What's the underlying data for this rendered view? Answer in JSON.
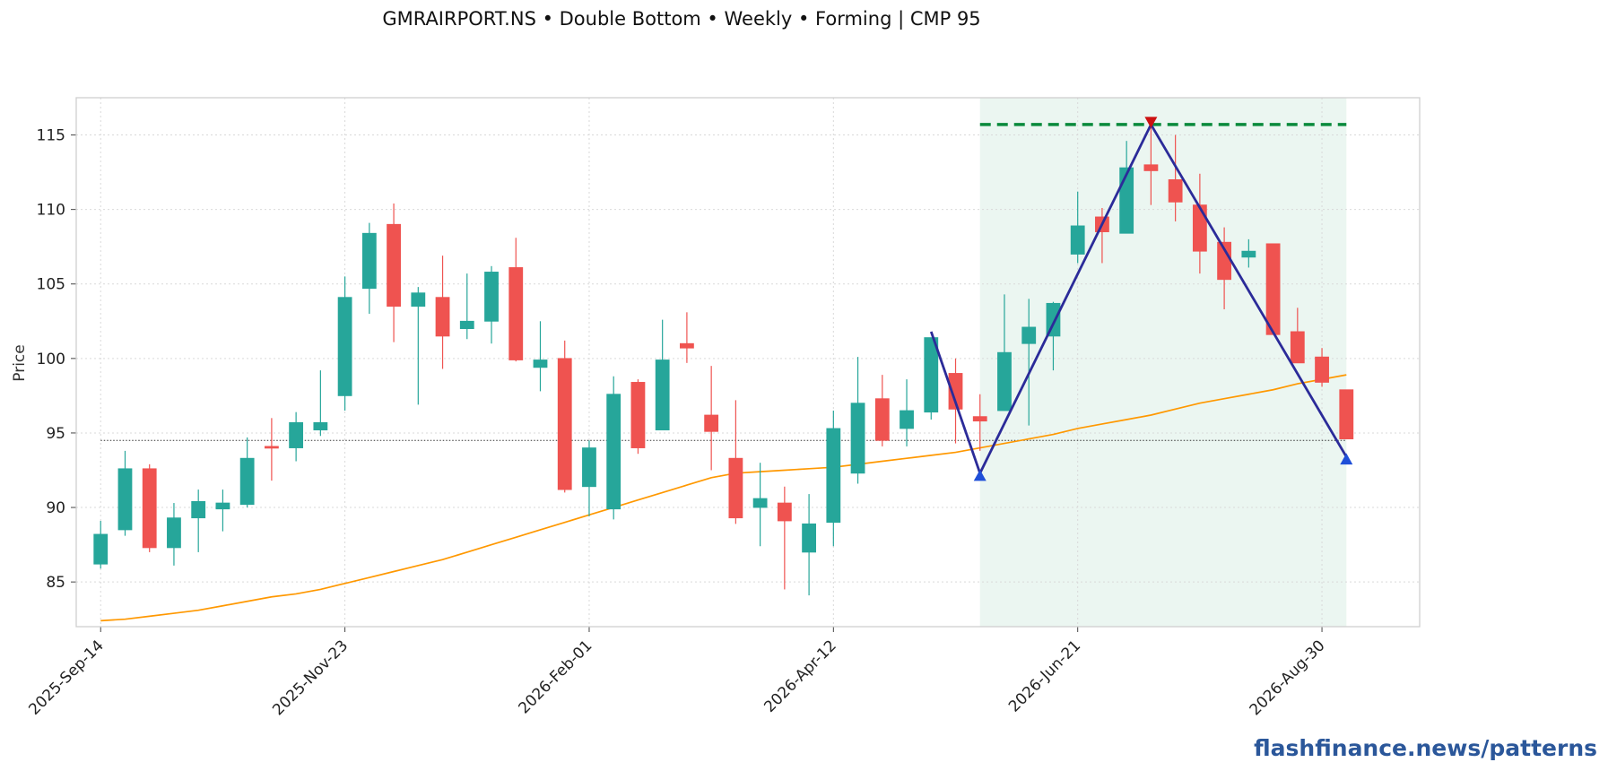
{
  "chart_data": {
    "type": "candlestick",
    "title": "GMRAIRPORT.NS  •  Double Bottom  •  Weekly  •  Forming  |  CMP 95",
    "ylabel": "Price",
    "xlabel": "",
    "ylim": [
      82,
      117.5
    ],
    "yticks": [
      85,
      90,
      95,
      100,
      105,
      110,
      115
    ],
    "xlim": [
      "2025-Sep-07",
      "2026-Sep-27"
    ],
    "xticks": [
      "2025-Sep-14",
      "2025-Nov-23",
      "2026-Feb-01",
      "2026-Apr-12",
      "2026-Jun-21",
      "2026-Aug-30"
    ],
    "grid": true,
    "watermark": "flashfinance.news",
    "footer": "flashfinance.news/patterns",
    "colors": {
      "up": "#26a69a",
      "down": "#ef5350",
      "ma": "#ff9800",
      "pattern": "#2b2b99",
      "resistance": "#0a8a3c",
      "shade": "#e8f5ee"
    },
    "series": [
      {
        "date": "2025-Sep-14",
        "open": 86.2,
        "high": 89.1,
        "low": 85.9,
        "close": 88.2
      },
      {
        "date": "2025-Sep-21",
        "open": 88.5,
        "high": 93.8,
        "low": 88.1,
        "close": 92.6
      },
      {
        "date": "2025-Sep-28",
        "open": 92.6,
        "high": 92.9,
        "low": 87.0,
        "close": 87.3
      },
      {
        "date": "2025-Oct-05",
        "open": 87.3,
        "high": 90.3,
        "low": 86.1,
        "close": 89.3
      },
      {
        "date": "2025-Oct-12",
        "open": 89.3,
        "high": 91.2,
        "low": 87.0,
        "close": 90.4
      },
      {
        "date": "2025-Oct-19",
        "open": 89.9,
        "high": 91.2,
        "low": 88.4,
        "close": 90.3
      },
      {
        "date": "2025-Oct-26",
        "open": 90.2,
        "high": 94.7,
        "low": 90.0,
        "close": 93.3
      },
      {
        "date": "2025-Nov-02",
        "open": 94.1,
        "high": 96.0,
        "low": 91.8,
        "close": 94.0
      },
      {
        "date": "2025-Nov-09",
        "open": 94.0,
        "high": 96.4,
        "low": 93.1,
        "close": 95.7
      },
      {
        "date": "2025-Nov-16",
        "open": 95.2,
        "high": 99.2,
        "low": 94.8,
        "close": 95.7
      },
      {
        "date": "2025-Nov-23",
        "open": 97.5,
        "high": 105.5,
        "low": 96.5,
        "close": 104.1
      },
      {
        "date": "2025-Nov-30",
        "open": 104.7,
        "high": 109.1,
        "low": 103.0,
        "close": 108.4
      },
      {
        "date": "2025-Dec-07",
        "open": 109.0,
        "high": 110.4,
        "low": 101.1,
        "close": 103.5
      },
      {
        "date": "2025-Dec-14",
        "open": 103.5,
        "high": 104.8,
        "low": 96.9,
        "close": 104.4
      },
      {
        "date": "2025-Dec-21",
        "open": 104.1,
        "high": 106.9,
        "low": 99.3,
        "close": 101.5
      },
      {
        "date": "2025-Dec-28",
        "open": 102.0,
        "high": 105.7,
        "low": 101.3,
        "close": 102.5
      },
      {
        "date": "2026-Jan-04",
        "open": 102.5,
        "high": 106.2,
        "low": 101.0,
        "close": 105.8
      },
      {
        "date": "2026-Jan-11",
        "open": 106.1,
        "high": 108.1,
        "low": 99.8,
        "close": 99.9
      },
      {
        "date": "2026-Jan-18",
        "open": 99.4,
        "high": 102.5,
        "low": 97.8,
        "close": 99.9
      },
      {
        "date": "2026-Jan-25",
        "open": 100.0,
        "high": 101.2,
        "low": 91.0,
        "close": 91.2
      },
      {
        "date": "2026-Feb-01",
        "open": 91.4,
        "high": 94.5,
        "low": 89.4,
        "close": 94.0
      },
      {
        "date": "2026-Feb-08",
        "open": 89.9,
        "high": 98.8,
        "low": 89.2,
        "close": 97.6
      },
      {
        "date": "2026-Feb-15",
        "open": 98.4,
        "high": 98.6,
        "low": 93.6,
        "close": 94.0
      },
      {
        "date": "2026-Feb-22",
        "open": 95.2,
        "high": 102.6,
        "low": 95.2,
        "close": 99.9
      },
      {
        "date": "2026-Mar-01",
        "open": 101.0,
        "high": 103.1,
        "low": 99.7,
        "close": 100.7
      },
      {
        "date": "2026-Mar-08",
        "open": 96.2,
        "high": 99.5,
        "low": 92.5,
        "close": 95.1
      },
      {
        "date": "2026-Mar-15",
        "open": 93.3,
        "high": 97.2,
        "low": 88.9,
        "close": 89.3
      },
      {
        "date": "2026-Mar-22",
        "open": 90.0,
        "high": 93.0,
        "low": 87.4,
        "close": 90.6
      },
      {
        "date": "2026-Mar-29",
        "open": 90.3,
        "high": 91.4,
        "low": 84.5,
        "close": 89.1
      },
      {
        "date": "2026-Apr-05",
        "open": 87.0,
        "high": 90.9,
        "low": 84.1,
        "close": 88.9
      },
      {
        "date": "2026-Apr-12",
        "open": 89.0,
        "high": 96.5,
        "low": 87.4,
        "close": 95.3
      },
      {
        "date": "2026-Apr-19",
        "open": 92.3,
        "high": 100.1,
        "low": 91.6,
        "close": 97.0
      },
      {
        "date": "2026-Apr-26",
        "open": 97.3,
        "high": 98.9,
        "low": 94.1,
        "close": 94.5
      },
      {
        "date": "2026-May-03",
        "open": 95.3,
        "high": 98.6,
        "low": 94.1,
        "close": 96.5
      },
      {
        "date": "2026-May-10",
        "open": 96.4,
        "high": 101.4,
        "low": 95.9,
        "close": 101.4
      },
      {
        "date": "2026-May-17",
        "open": 99.0,
        "high": 100.0,
        "low": 94.3,
        "close": 96.6
      },
      {
        "date": "2026-May-24",
        "open": 96.1,
        "high": 97.6,
        "low": 93.8,
        "close": 95.8
      },
      {
        "date": "2026-May-31",
        "open": 96.5,
        "high": 104.3,
        "low": 96.5,
        "close": 100.4
      },
      {
        "date": "2026-Jun-07",
        "open": 101.0,
        "high": 104.0,
        "low": 95.5,
        "close": 102.1
      },
      {
        "date": "2026-Jun-14",
        "open": 101.5,
        "high": 103.8,
        "low": 99.2,
        "close": 103.7
      },
      {
        "date": "2026-Jun-21",
        "open": 107.0,
        "high": 111.2,
        "low": 106.4,
        "close": 108.9
      },
      {
        "date": "2026-Jun-28",
        "open": 109.5,
        "high": 110.1,
        "low": 106.4,
        "close": 108.5
      },
      {
        "date": "2026-Jul-05",
        "open": 108.4,
        "high": 114.6,
        "low": 108.4,
        "close": 112.8
      },
      {
        "date": "2026-Jul-12",
        "open": 113.0,
        "high": 116.0,
        "low": 110.3,
        "close": 112.6
      },
      {
        "date": "2026-Jul-19",
        "open": 112.0,
        "high": 115.0,
        "low": 109.2,
        "close": 110.5
      },
      {
        "date": "2026-Jul-26",
        "open": 110.3,
        "high": 112.4,
        "low": 105.7,
        "close": 107.2
      },
      {
        "date": "2026-Aug-02",
        "open": 107.8,
        "high": 108.8,
        "low": 103.3,
        "close": 105.3
      },
      {
        "date": "2026-Aug-09",
        "open": 106.8,
        "high": 108.0,
        "low": 106.1,
        "close": 107.2
      },
      {
        "date": "2026-Aug-16",
        "open": 107.7,
        "high": 107.7,
        "low": 101.6,
        "close": 101.6
      },
      {
        "date": "2026-Aug-23",
        "open": 101.8,
        "high": 103.4,
        "low": 99.7,
        "close": 99.7
      },
      {
        "date": "2026-Aug-30",
        "open": 100.1,
        "high": 100.7,
        "low": 98.1,
        "close": 98.4
      },
      {
        "date": "2026-Sep-06",
        "open": 97.9,
        "high": 97.9,
        "low": 94.6,
        "close": 94.6
      }
    ],
    "moving_average": [
      82.4,
      82.4,
      82.4,
      82.4,
      82.5,
      82.7,
      82.9,
      83.1,
      83.4,
      83.7,
      84.0,
      84.2,
      84.5,
      84.9,
      85.3,
      85.7,
      86.1,
      86.5,
      87.0,
      87.5,
      88.0,
      88.5,
      89.0,
      89.5,
      90.0,
      90.5,
      91.0,
      91.5,
      92.0,
      92.3,
      92.4,
      92.5,
      92.6,
      92.7,
      92.9,
      93.1,
      93.3,
      93.5,
      93.7,
      94.0,
      94.3,
      94.6,
      94.9,
      95.3,
      95.6,
      95.9,
      96.2,
      96.6,
      97.0,
      97.3,
      97.6,
      97.9,
      98.3,
      98.6,
      98.9,
      99.0
    ],
    "ma_name": "",
    "pattern": {
      "name": "Double Bottom",
      "points": [
        {
          "date": "2026-May-10",
          "price": 101.8
        },
        {
          "date": "2026-May-24",
          "price": 92.3
        },
        {
          "date": "2026-Jul-12",
          "price": 115.7
        },
        {
          "date": "2026-Sep-06",
          "price": 93.4
        }
      ],
      "resistance": 115.7,
      "region": [
        "2026-May-24",
        "2026-Sep-06"
      ],
      "reference_line": 94.5
    }
  }
}
